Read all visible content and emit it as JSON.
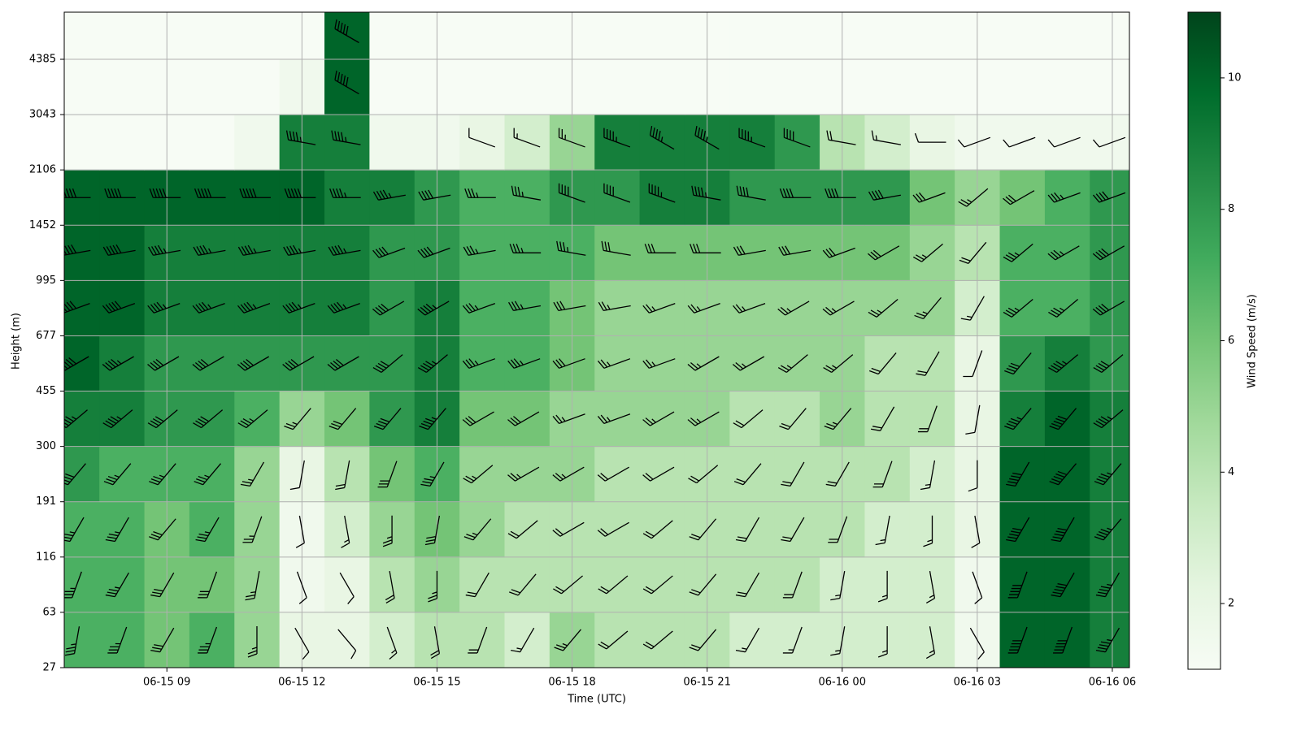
{
  "chart_data": {
    "type": "heatmap-barbs",
    "xlabel": "Time (UTC)",
    "ylabel": "Height (m)",
    "x": [
      7,
      8,
      9,
      10,
      11,
      12,
      13,
      14,
      15,
      16,
      17,
      18,
      19,
      20,
      21,
      22,
      23,
      24,
      25,
      26,
      27,
      28,
      29,
      30
    ],
    "xlim": [
      6.72,
      30.38
    ],
    "xticks": [
      {
        "value": 9,
        "label": "06-15 09"
      },
      {
        "value": 12,
        "label": "06-15 12"
      },
      {
        "value": 15,
        "label": "06-15 15"
      },
      {
        "value": 18,
        "label": "06-15 18"
      },
      {
        "value": 21,
        "label": "06-15 21"
      },
      {
        "value": 24,
        "label": "06-16 00"
      },
      {
        "value": 27,
        "label": "06-16 03"
      },
      {
        "value": 30,
        "label": "06-16 06"
      }
    ],
    "yticks": [
      27,
      63,
      116,
      191,
      300,
      455,
      677,
      995,
      1452,
      2106,
      3043,
      4385
    ],
    "grid": true,
    "cmap": "Greens",
    "speed": [
      [
        7,
        7,
        6,
        7,
        5,
        2,
        2,
        3,
        4,
        4,
        3,
        5,
        4,
        4,
        4,
        3,
        3,
        3,
        3,
        3,
        1.5,
        10,
        10,
        9
      ],
      [
        7,
        7,
        6,
        6,
        5,
        1.5,
        2,
        4,
        5,
        4,
        4,
        4,
        4,
        4,
        4,
        4,
        4,
        3,
        3,
        3,
        1.5,
        10,
        10,
        9
      ],
      [
        7,
        7,
        6,
        7,
        5,
        1.5,
        3,
        5,
        6,
        5,
        4,
        4,
        4,
        4,
        4,
        4,
        4,
        4,
        3,
        3,
        2,
        10,
        10,
        9
      ],
      [
        8,
        7,
        7,
        7,
        5,
        2,
        4,
        6,
        7,
        5,
        5,
        5,
        4,
        4,
        4,
        4,
        4,
        4,
        4,
        3,
        2,
        10,
        10,
        9
      ],
      [
        9,
        9,
        8,
        8,
        7,
        5,
        6,
        8,
        9,
        6,
        6,
        5,
        5,
        5,
        5,
        4,
        4,
        5,
        4,
        4,
        2,
        9,
        10,
        9
      ],
      [
        10,
        9,
        8,
        8,
        8,
        8,
        8,
        8,
        9,
        7,
        7,
        6,
        5,
        5,
        5,
        5,
        5,
        5,
        4,
        4,
        2,
        8,
        9,
        8
      ],
      [
        10,
        10,
        9,
        9,
        9,
        9,
        9,
        8,
        9,
        7,
        7,
        6,
        5,
        5,
        5,
        5,
        5,
        5,
        5,
        5,
        3,
        7,
        7,
        8
      ],
      [
        10,
        10,
        9,
        9,
        9,
        9,
        9,
        8,
        8,
        7,
        7,
        7,
        6,
        6,
        6,
        6,
        6,
        6,
        6,
        5,
        4,
        7,
        7,
        8
      ],
      [
        10,
        10,
        10,
        10,
        10,
        10,
        9,
        9,
        8,
        7,
        7,
        8,
        8,
        9,
        9,
        8,
        8,
        8,
        8,
        6,
        5,
        6,
        7,
        8
      ],
      [
        1,
        1,
        1,
        1,
        1.5,
        9,
        9,
        1.5,
        1.5,
        2,
        3,
        5,
        9,
        9,
        9,
        9,
        8,
        4,
        3,
        2,
        1.5,
        1.5,
        1.5,
        1.5
      ],
      [
        1,
        1,
        1,
        1,
        1,
        1.5,
        10,
        1,
        1,
        1,
        1,
        1,
        1,
        1,
        1,
        1,
        1,
        1,
        1,
        1,
        1,
        1,
        1,
        1
      ],
      [
        1,
        1,
        1,
        1,
        1,
        1,
        10,
        1,
        1,
        1,
        1,
        1,
        1,
        1,
        1,
        1,
        1,
        1,
        1,
        1,
        1,
        1,
        1,
        1
      ]
    ],
    "direction": [
      [
        190,
        200,
        210,
        200,
        180,
        150,
        140,
        160,
        170,
        200,
        210,
        220,
        230,
        230,
        220,
        210,
        200,
        190,
        180,
        170,
        150,
        200,
        200,
        210
      ],
      [
        200,
        210,
        210,
        200,
        190,
        160,
        150,
        170,
        180,
        210,
        220,
        230,
        230,
        230,
        220,
        210,
        200,
        190,
        180,
        170,
        160,
        200,
        210,
        210
      ],
      [
        210,
        210,
        220,
        210,
        200,
        170,
        170,
        180,
        190,
        220,
        230,
        240,
        240,
        230,
        220,
        210,
        210,
        200,
        190,
        180,
        170,
        210,
        210,
        220
      ],
      [
        220,
        220,
        220,
        220,
        210,
        190,
        190,
        200,
        210,
        230,
        240,
        240,
        240,
        240,
        230,
        220,
        210,
        210,
        200,
        190,
        180,
        210,
        220,
        220
      ],
      [
        230,
        230,
        230,
        230,
        230,
        220,
        220,
        220,
        220,
        240,
        240,
        250,
        250,
        240,
        240,
        230,
        220,
        220,
        210,
        200,
        190,
        220,
        220,
        230
      ],
      [
        240,
        240,
        240,
        240,
        240,
        240,
        240,
        230,
        230,
        250,
        250,
        250,
        250,
        250,
        240,
        240,
        230,
        230,
        220,
        210,
        200,
        220,
        230,
        230
      ],
      [
        250,
        250,
        250,
        250,
        250,
        250,
        250,
        240,
        240,
        250,
        260,
        260,
        260,
        250,
        250,
        250,
        240,
        240,
        230,
        220,
        210,
        230,
        230,
        240
      ],
      [
        260,
        260,
        260,
        260,
        260,
        260,
        260,
        250,
        250,
        260,
        270,
        280,
        280,
        270,
        270,
        260,
        260,
        250,
        240,
        230,
        220,
        230,
        240,
        240
      ],
      [
        270,
        270,
        270,
        270,
        270,
        270,
        270,
        260,
        260,
        270,
        280,
        290,
        290,
        290,
        280,
        280,
        270,
        270,
        260,
        250,
        230,
        240,
        250,
        250
      ],
      [
        null,
        null,
        null,
        null,
        null,
        280,
        280,
        null,
        null,
        290,
        290,
        290,
        290,
        300,
        300,
        290,
        290,
        280,
        280,
        270,
        250,
        250,
        250,
        250
      ],
      [
        null,
        null,
        null,
        null,
        null,
        null,
        300,
        null,
        null,
        null,
        null,
        null,
        null,
        null,
        null,
        null,
        null,
        null,
        null,
        null,
        null,
        null,
        null,
        null
      ],
      [
        null,
        null,
        null,
        null,
        null,
        null,
        300,
        null,
        null,
        null,
        null,
        null,
        null,
        null,
        null,
        null,
        null,
        null,
        null,
        null,
        null,
        null,
        null,
        null
      ]
    ],
    "colorbar": {
      "label": "Wind Speed (m/s)",
      "lim": [
        1,
        11
      ],
      "ticks": [
        2,
        4,
        6,
        8,
        10
      ]
    }
  }
}
